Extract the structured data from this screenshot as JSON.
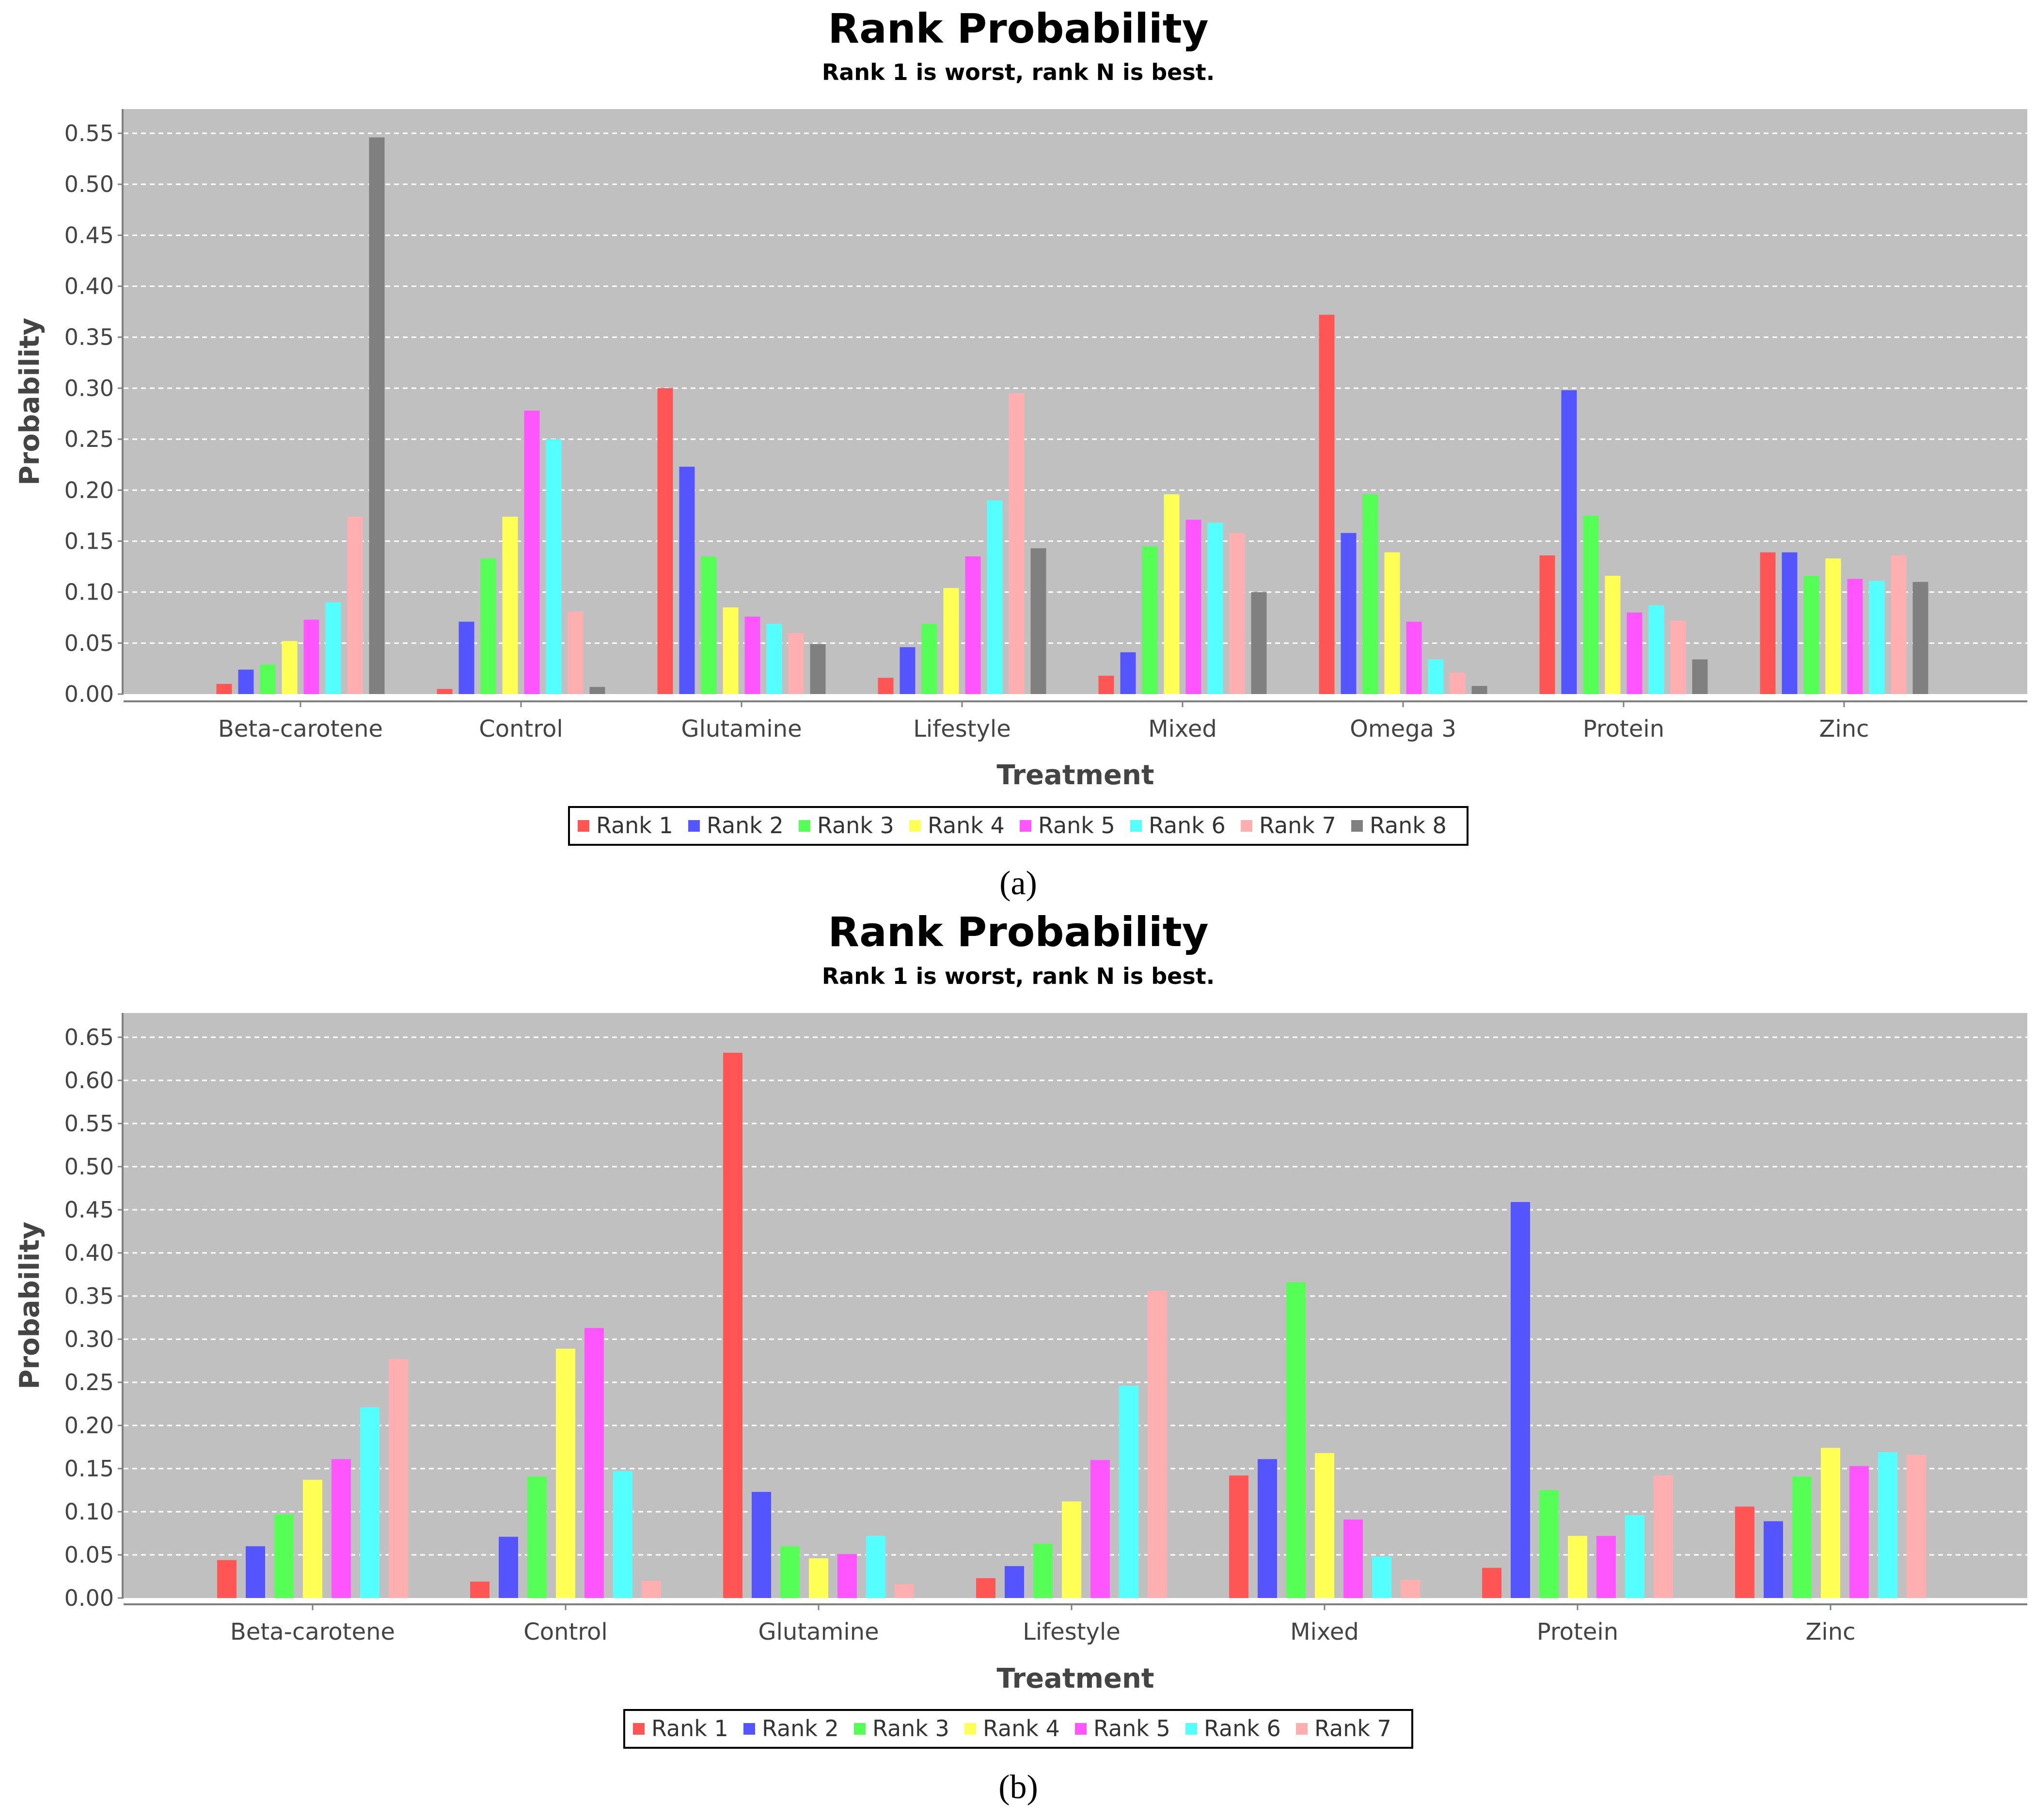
{
  "chart_data": [
    {
      "type": "bar",
      "title": "Rank Probability",
      "subtitle": "Rank 1 is worst, rank N is best.",
      "xlabel": "Treatment",
      "ylabel": "Probability",
      "ylim": [
        0,
        0.55
      ],
      "yticks": [
        "0.00",
        "0.05",
        "0.10",
        "0.15",
        "0.20",
        "0.25",
        "0.30",
        "0.35",
        "0.40",
        "0.45",
        "0.50",
        "0.55"
      ],
      "grid": true,
      "legend_position": "bottom",
      "panel_label": "(a)",
      "categories": [
        "Beta-carotene",
        "Control",
        "Glutamine",
        "Lifestyle",
        "Mixed",
        "Omega 3",
        "Protein",
        "Zinc"
      ],
      "series": [
        {
          "name": "Rank 1",
          "color": "#ff5555",
          "values": [
            0.01,
            0.005,
            0.3,
            0.016,
            0.018,
            0.372,
            0.136,
            0.139
          ]
        },
        {
          "name": "Rank 2",
          "color": "#5555ff",
          "values": [
            0.024,
            0.071,
            0.223,
            0.046,
            0.041,
            0.158,
            0.298,
            0.139
          ]
        },
        {
          "name": "Rank 3",
          "color": "#55ff55",
          "values": [
            0.029,
            0.133,
            0.135,
            0.069,
            0.145,
            0.196,
            0.175,
            0.116
          ]
        },
        {
          "name": "Rank 4",
          "color": "#ffff55",
          "values": [
            0.052,
            0.174,
            0.085,
            0.104,
            0.196,
            0.139,
            0.116,
            0.133
          ]
        },
        {
          "name": "Rank 5",
          "color": "#ff55ff",
          "values": [
            0.073,
            0.278,
            0.076,
            0.135,
            0.171,
            0.071,
            0.08,
            0.113
          ]
        },
        {
          "name": "Rank 6",
          "color": "#55ffff",
          "values": [
            0.09,
            0.25,
            0.069,
            0.19,
            0.168,
            0.034,
            0.087,
            0.111
          ]
        },
        {
          "name": "Rank 7",
          "color": "#ffafaf",
          "values": [
            0.174,
            0.081,
            0.06,
            0.295,
            0.158,
            0.021,
            0.072,
            0.136
          ]
        },
        {
          "name": "Rank 8",
          "color": "#808080",
          "values": [
            0.546,
            0.007,
            0.049,
            0.143,
            0.1,
            0.008,
            0.034,
            0.11
          ]
        }
      ]
    },
    {
      "type": "bar",
      "title": "Rank Probability",
      "subtitle": "Rank 1 is worst, rank N is best.",
      "xlabel": "Treatment",
      "ylabel": "Probability",
      "ylim": [
        0,
        0.65
      ],
      "yticks": [
        "0.00",
        "0.05",
        "0.10",
        "0.15",
        "0.20",
        "0.25",
        "0.30",
        "0.35",
        "0.40",
        "0.45",
        "0.50",
        "0.55",
        "0.60",
        "0.65"
      ],
      "grid": true,
      "legend_position": "bottom",
      "panel_label": "(b)",
      "categories": [
        "Beta-carotene",
        "Control",
        "Glutamine",
        "Lifestyle",
        "Mixed",
        "Protein",
        "Zinc"
      ],
      "series": [
        {
          "name": "Rank 1",
          "color": "#ff5555",
          "values": [
            0.044,
            0.019,
            0.632,
            0.023,
            0.142,
            0.035,
            0.106
          ]
        },
        {
          "name": "Rank 2",
          "color": "#5555ff",
          "values": [
            0.06,
            0.071,
            0.123,
            0.037,
            0.161,
            0.459,
            0.089
          ]
        },
        {
          "name": "Rank 3",
          "color": "#55ff55",
          "values": [
            0.097,
            0.141,
            0.06,
            0.063,
            0.366,
            0.125,
            0.141
          ]
        },
        {
          "name": "Rank 4",
          "color": "#ffff55",
          "values": [
            0.137,
            0.289,
            0.046,
            0.112,
            0.168,
            0.072,
            0.174
          ]
        },
        {
          "name": "Rank 5",
          "color": "#ff55ff",
          "values": [
            0.161,
            0.313,
            0.051,
            0.16,
            0.091,
            0.072,
            0.153
          ]
        },
        {
          "name": "Rank 6",
          "color": "#55ffff",
          "values": [
            0.221,
            0.147,
            0.072,
            0.246,
            0.048,
            0.096,
            0.169
          ]
        },
        {
          "name": "Rank 7",
          "color": "#ffafaf",
          "values": [
            0.277,
            0.02,
            0.016,
            0.356,
            0.021,
            0.142,
            0.166
          ]
        }
      ]
    }
  ]
}
